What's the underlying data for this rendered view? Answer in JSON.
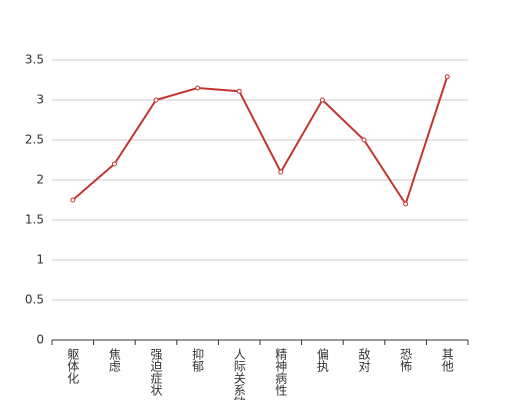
{
  "chart_data": {
    "type": "line",
    "categories": [
      "躯体化",
      "焦虑",
      "强迫症状",
      "抑郁",
      "人际关系敏感",
      "精神病性",
      "偏执",
      "敌对",
      "恐怖",
      "其他"
    ],
    "values": [
      1.75,
      2.2,
      3.0,
      3.15,
      3.11,
      2.1,
      3.0,
      2.5,
      1.7,
      3.29
    ],
    "color": "#c23531",
    "ylim": [
      0,
      3.5
    ],
    "yticks": [
      0,
      0.5,
      1,
      1.5,
      2,
      2.5,
      3,
      3.5
    ],
    "grid": true
  }
}
